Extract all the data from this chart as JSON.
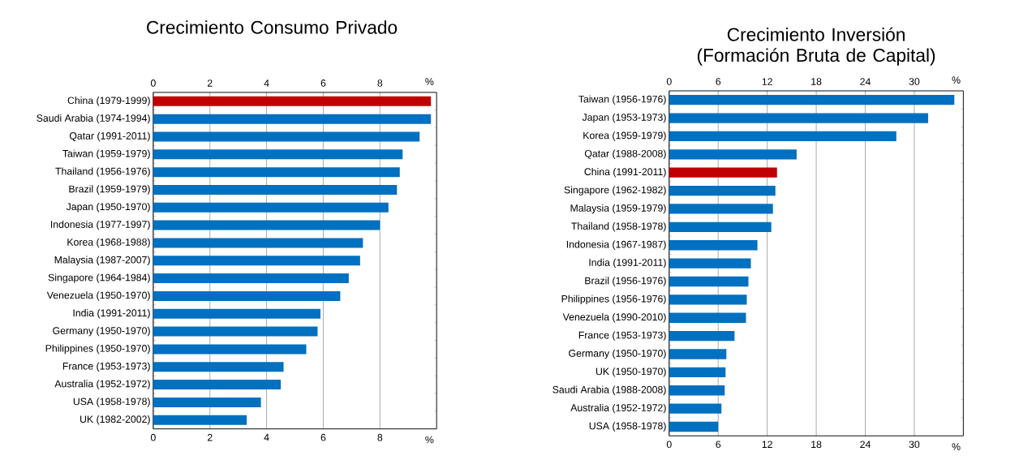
{
  "chart_data": [
    {
      "type": "bar",
      "orientation": "horizontal",
      "title": "Crecimiento Consumo Privado",
      "xlabel": "%",
      "x2label": "%",
      "categories": [
        "China (1979-1999)",
        "Saudi Arabia (1974-1994)",
        "Qatar (1991-2011)",
        "Taiwan (1959-1979)",
        "Thailand (1956-1976)",
        "Brazil (1959-1979)",
        "Japan (1950-1970)",
        "Indonesia (1977-1997)",
        "Korea (1968-1988)",
        "Malaysia (1987-2007)",
        "Singapore (1964-1984)",
        "Venezuela (1950-1970)",
        "India (1991-2011)",
        "Germany (1950-1970)",
        "Philippines (1950-1970)",
        "France (1953-1973)",
        "Australia (1952-1972)",
        "USA (1958-1978)",
        "UK (1982-2002)"
      ],
      "values": [
        9.8,
        9.8,
        9.4,
        8.8,
        8.7,
        8.6,
        8.3,
        8.0,
        7.4,
        7.3,
        6.9,
        6.6,
        5.9,
        5.8,
        5.4,
        4.6,
        4.5,
        3.8,
        3.3
      ],
      "colors": [
        "#c00000",
        "#0070c0",
        "#0070c0",
        "#0070c0",
        "#0070c0",
        "#0070c0",
        "#0070c0",
        "#0070c0",
        "#0070c0",
        "#0070c0",
        "#0070c0",
        "#0070c0",
        "#0070c0",
        "#0070c0",
        "#0070c0",
        "#0070c0",
        "#0070c0",
        "#0070c0",
        "#0070c0"
      ],
      "xlim": [
        0,
        10
      ],
      "xticks": [
        0,
        2,
        4,
        6,
        8
      ],
      "x2lim": [
        0,
        10
      ],
      "x2ticks": [
        0,
        2,
        4,
        6,
        8
      ],
      "grid": "x"
    },
    {
      "type": "bar",
      "orientation": "horizontal",
      "title": "Crecimiento Inversión (Formación Bruta de Capital)",
      "xlabel": "%",
      "x2label": "%",
      "categories": [
        "Taiwan (1956-1976)",
        "Japan (1953-1973)",
        "Korea (1959-1979)",
        "Qatar (1988-2008)",
        "China (1991-2011)",
        "Singapore (1962-1982)",
        "Malaysia (1959-1979)",
        "Thailand (1958-1978)",
        "Indonesia (1967-1987)",
        "India (1991-2011)",
        "Brazil (1956-1976)",
        "Philippines (1956-1976)",
        "Venezuela (1990-2010)",
        "France (1953-1973)",
        "Germany (1950-1970)",
        "UK (1950-1970)",
        "Saudi Arabia (1988-2008)",
        "Australia (1952-1972)",
        "USA (1958-1978)"
      ],
      "values": [
        34.9,
        31.7,
        27.8,
        15.6,
        13.2,
        13.0,
        12.7,
        12.5,
        10.8,
        10.0,
        9.7,
        9.5,
        9.4,
        8.0,
        7.0,
        6.9,
        6.8,
        6.4,
        6.0
      ],
      "colors": [
        "#0070c0",
        "#0070c0",
        "#0070c0",
        "#0070c0",
        "#c00000",
        "#0070c0",
        "#0070c0",
        "#0070c0",
        "#0070c0",
        "#0070c0",
        "#0070c0",
        "#0070c0",
        "#0070c0",
        "#0070c0",
        "#0070c0",
        "#0070c0",
        "#0070c0",
        "#0070c0",
        "#0070c0"
      ],
      "xlim": [
        0,
        36
      ],
      "xticks": [
        0,
        6,
        12,
        18,
        24,
        30
      ],
      "x2lim": [
        0,
        36
      ],
      "x2ticks": [
        0,
        6,
        12,
        18,
        24,
        30
      ],
      "grid": "x"
    }
  ]
}
